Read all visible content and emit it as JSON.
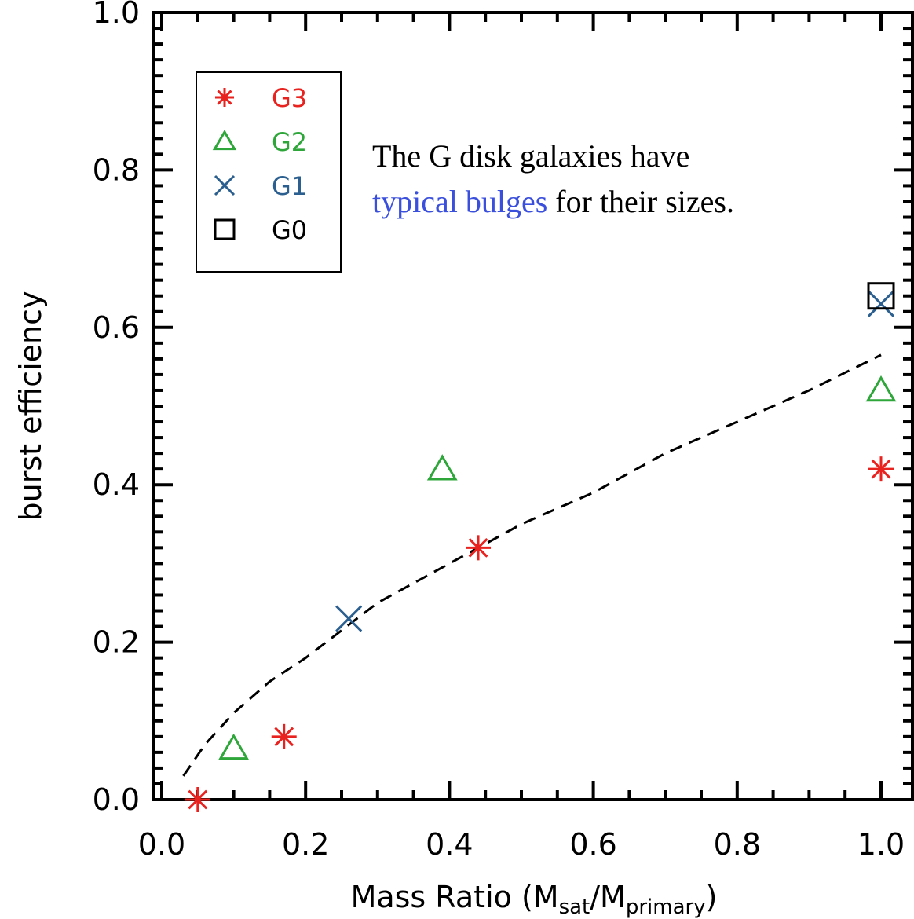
{
  "chart_data": {
    "type": "scatter",
    "title": "",
    "xlabel": {
      "prefix": "Mass Ratio (M",
      "sub1": "sat",
      "mid": "/M",
      "sub2": "primary",
      "suffix": ")"
    },
    "ylabel": "burst efficiency",
    "xlim": [
      -0.05,
      1.07
    ],
    "ylim": [
      0.0,
      1.0
    ],
    "xticks": [
      {
        "value": 0.0,
        "label": "0.0"
      },
      {
        "value": 0.2,
        "label": "0.2"
      },
      {
        "value": 0.4,
        "label": "0.4"
      },
      {
        "value": 0.6,
        "label": "0.6"
      },
      {
        "value": 0.8,
        "label": "0.8"
      },
      {
        "value": 1.0,
        "label": "1.0"
      }
    ],
    "yticks": [
      {
        "value": 0.0,
        "label": "0.0"
      },
      {
        "value": 0.2,
        "label": "0.2"
      },
      {
        "value": 0.4,
        "label": "0.4"
      },
      {
        "value": 0.6,
        "label": "0.6"
      },
      {
        "value": 0.8,
        "label": "0.8"
      },
      {
        "value": 1.0,
        "label": "1.0"
      }
    ],
    "grid": false,
    "legend_position": "top-left",
    "series": [
      {
        "name": "G3",
        "marker": "asterisk",
        "color": "#e8231f",
        "points": [
          [
            0.05,
            0.0
          ],
          [
            0.17,
            0.08
          ],
          [
            0.44,
            0.32
          ],
          [
            1.0,
            0.42
          ]
        ]
      },
      {
        "name": "G2",
        "marker": "triangle",
        "color": "#2ea63a",
        "points": [
          [
            0.1,
            0.065
          ],
          [
            0.39,
            0.42
          ],
          [
            1.0,
            0.52
          ]
        ]
      },
      {
        "name": "G1",
        "marker": "x",
        "color": "#2b5f8f",
        "points": [
          [
            0.26,
            0.23
          ],
          [
            1.0,
            0.63
          ]
        ]
      },
      {
        "name": "G0",
        "marker": "square",
        "color": "#000000",
        "points": [
          [
            1.0,
            0.64
          ]
        ]
      }
    ],
    "fit_line": {
      "style": "dashed",
      "color": "#000000",
      "points": [
        [
          0.03,
          0.03
        ],
        [
          0.06,
          0.07
        ],
        [
          0.1,
          0.11
        ],
        [
          0.15,
          0.15
        ],
        [
          0.2,
          0.18
        ],
        [
          0.3,
          0.25
        ],
        [
          0.4,
          0.3
        ],
        [
          0.5,
          0.35
        ],
        [
          0.6,
          0.39
        ],
        [
          0.7,
          0.44
        ],
        [
          0.8,
          0.48
        ],
        [
          0.9,
          0.52
        ],
        [
          1.0,
          0.565
        ]
      ]
    },
    "annotation": {
      "line1": "The G disk galaxies have",
      "line2_highlight": "typical bulges",
      "line2_rest": " for their sizes.",
      "highlight_color": "#3a4fdc"
    }
  }
}
